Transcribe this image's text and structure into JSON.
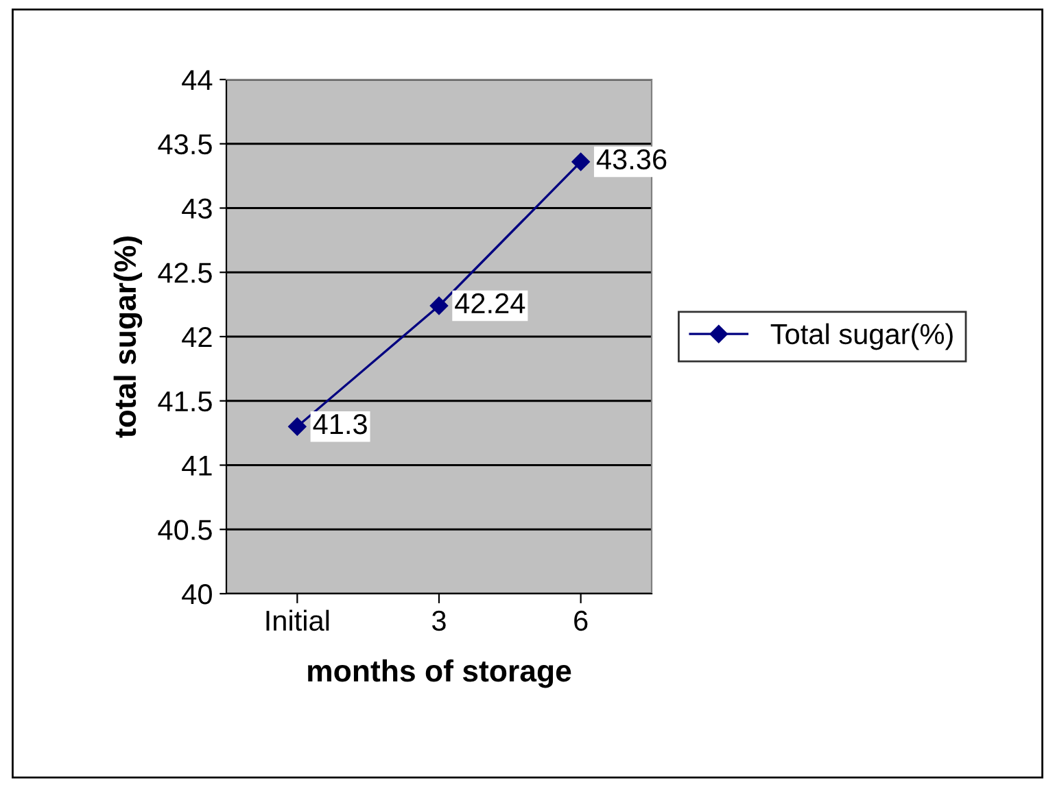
{
  "chart_data": {
    "type": "line",
    "xlabel": "months of storage",
    "ylabel": "total sugar(%)",
    "categories": [
      "Initial",
      "3",
      "6"
    ],
    "series": [
      {
        "name": "Total sugar(%)",
        "color": "#000080",
        "values": [
          41.3,
          42.24,
          43.36
        ]
      }
    ],
    "ylim": [
      40,
      44
    ],
    "yticks": [
      40,
      40.5,
      41,
      41.5,
      42,
      42.5,
      43,
      43.5,
      44
    ],
    "grid": "y",
    "legend": "right",
    "marker": "diamond",
    "line_style": "solid",
    "data_labels": true
  }
}
